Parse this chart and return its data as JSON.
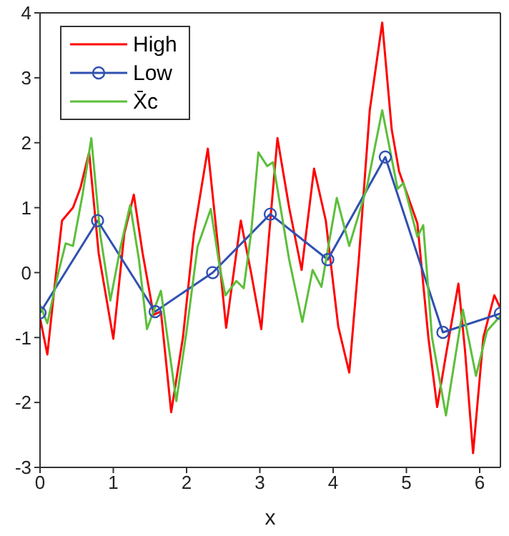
{
  "chart_data": {
    "type": "line",
    "xlabel": "x",
    "xlim": [
      0,
      6.2832
    ],
    "xticks": [
      0,
      1,
      2,
      3,
      4,
      5,
      6
    ],
    "ylim": [
      -3,
      4
    ],
    "yticks": [
      -3,
      -2,
      -1,
      0,
      1,
      2,
      3,
      4
    ],
    "legend": "top left",
    "line_style": "solid",
    "series": [
      {
        "name": "High",
        "color": "#ff0000",
        "marker": "none",
        "x": [
          0,
          0.1,
          0.2,
          0.3,
          0.45,
          0.55,
          0.67,
          0.8,
          1.0,
          1.15,
          1.28,
          1.4,
          1.55,
          1.65,
          1.79,
          1.95,
          2.1,
          2.29,
          2.42,
          2.54,
          2.74,
          2.88,
          3.02,
          3.12,
          3.24,
          3.4,
          3.57,
          3.74,
          3.9,
          4.07,
          4.22,
          4.35,
          4.5,
          4.67,
          4.8,
          4.9,
          5.15,
          5.3,
          5.42,
          5.55,
          5.71,
          5.8,
          5.91,
          6.05,
          6.2,
          6.28
        ],
        "values": [
          -0.7,
          -1.26,
          -0.2,
          0.8,
          1.0,
          1.3,
          1.85,
          0.3,
          -1.02,
          0.6,
          1.2,
          0.3,
          -0.65,
          -0.6,
          -2.15,
          -1.0,
          0.6,
          1.91,
          0.5,
          -0.85,
          0.8,
          0.0,
          -0.87,
          0.5,
          2.07,
          1.0,
          0.04,
          1.6,
          0.8,
          -0.83,
          -1.54,
          0.2,
          2.5,
          3.85,
          2.2,
          1.56,
          0.76,
          -1.0,
          -2.07,
          -1.2,
          -0.17,
          -1.2,
          -2.78,
          -1.0,
          -0.35,
          -0.54
        ]
      },
      {
        "name": "Low",
        "color": "#3050b0",
        "marker": "circle",
        "x": [
          0,
          0.785,
          1.571,
          2.356,
          3.142,
          3.927,
          4.712,
          5.498,
          6.283
        ],
        "values": [
          -0.62,
          0.8,
          -0.6,
          0.0,
          0.9,
          0.2,
          1.78,
          -0.92,
          -0.63
        ]
      },
      {
        "name": "X̄c",
        "color": "#5cbf3a",
        "marker": "none",
        "x": [
          0,
          0.1,
          0.25,
          0.35,
          0.45,
          0.58,
          0.7,
          0.82,
          0.96,
          1.1,
          1.23,
          1.35,
          1.46,
          1.65,
          1.86,
          2.0,
          2.15,
          2.33,
          2.45,
          2.53,
          2.68,
          2.78,
          2.88,
          2.98,
          3.1,
          3.18,
          3.4,
          3.58,
          3.72,
          3.84,
          3.95,
          4.05,
          4.22,
          4.46,
          4.67,
          4.88,
          4.96,
          5.15,
          5.23,
          5.35,
          5.54,
          5.77,
          5.95,
          6.1,
          6.28
        ],
        "values": [
          -0.5,
          -0.78,
          0.0,
          0.45,
          0.41,
          1.2,
          2.07,
          0.6,
          -0.43,
          0.4,
          1.04,
          0.2,
          -0.87,
          -0.28,
          -1.98,
          -0.9,
          0.4,
          0.98,
          0.1,
          -0.35,
          -0.13,
          -0.24,
          0.6,
          1.85,
          1.64,
          1.7,
          0.2,
          -0.76,
          0.04,
          -0.22,
          0.5,
          1.15,
          0.41,
          1.31,
          2.5,
          1.29,
          1.38,
          0.55,
          0.73,
          -1.0,
          -2.2,
          -0.57,
          -1.59,
          -0.9,
          -0.67
        ]
      }
    ]
  }
}
